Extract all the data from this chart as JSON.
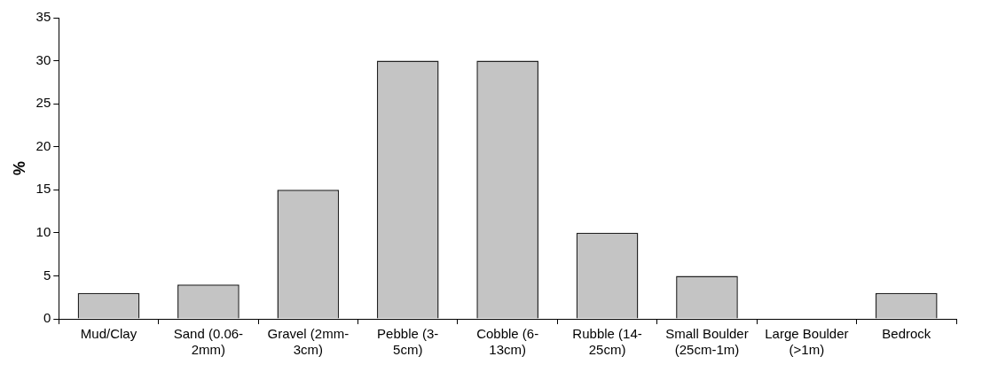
{
  "chart_data": {
    "type": "bar",
    "ylabel": "%",
    "categories": [
      "Mud/Clay",
      "Sand (0.06-2mm)",
      "Gravel (2mm-3cm)",
      "Pebble (3-5cm)",
      "Cobble (6-13cm)",
      "Rubble (14-25cm)",
      "Small Boulder (25cm-1m)",
      "Large Boulder (>1m)",
      "Bedrock"
    ],
    "values": [
      3,
      4,
      15,
      30,
      30,
      10,
      5,
      0,
      3
    ],
    "color": "#c4c4c4",
    "ylim": [
      0,
      35
    ],
    "yticks": [
      0,
      5,
      10,
      15,
      20,
      25,
      30,
      35
    ],
    "grid": false,
    "legend": false
  }
}
